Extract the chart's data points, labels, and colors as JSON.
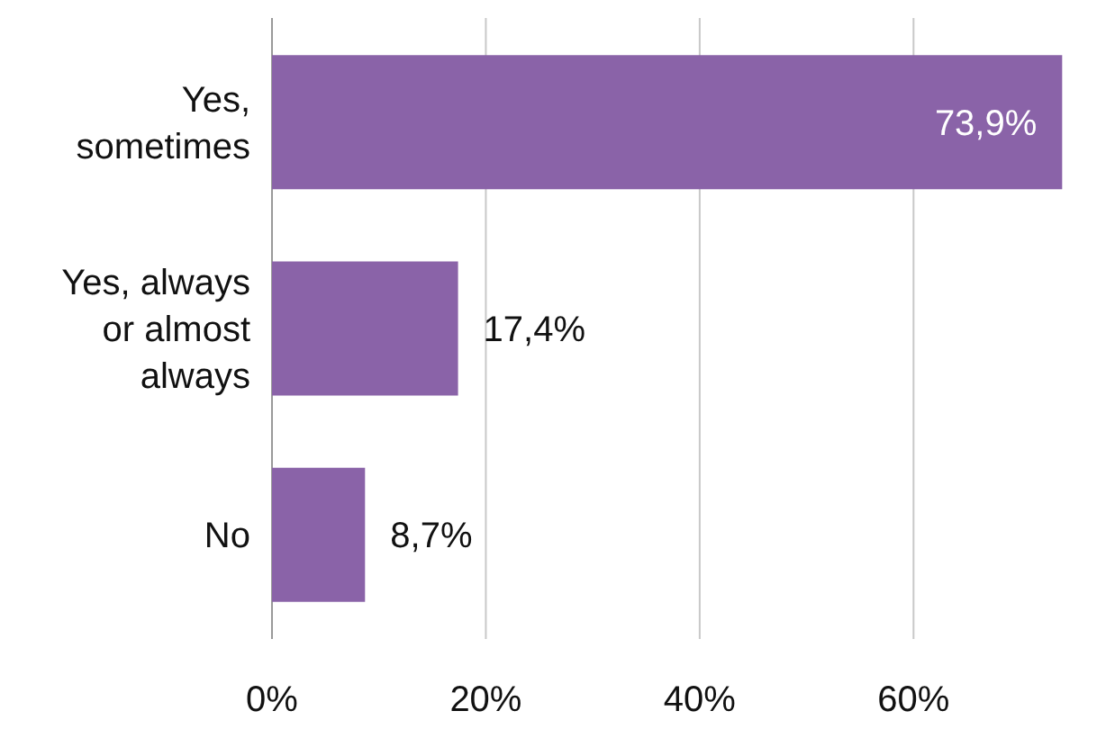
{
  "chart_data": {
    "type": "bar",
    "orientation": "horizontal",
    "categories": [
      "Yes, sometimes",
      "Yes, always or almost always",
      "No"
    ],
    "values": [
      73.9,
      17.4,
      8.7
    ],
    "value_labels": [
      "73,9%",
      "17,4%",
      "8,7%"
    ],
    "color": "#8a63a8",
    "xlim": [
      0,
      78
    ],
    "xticks": [
      {
        "value": 0,
        "label": "0%"
      },
      {
        "value": 20,
        "label": "20%"
      },
      {
        "value": 40,
        "label": "40%"
      },
      {
        "value": 60,
        "label": "60%"
      }
    ],
    "grid": "x"
  }
}
